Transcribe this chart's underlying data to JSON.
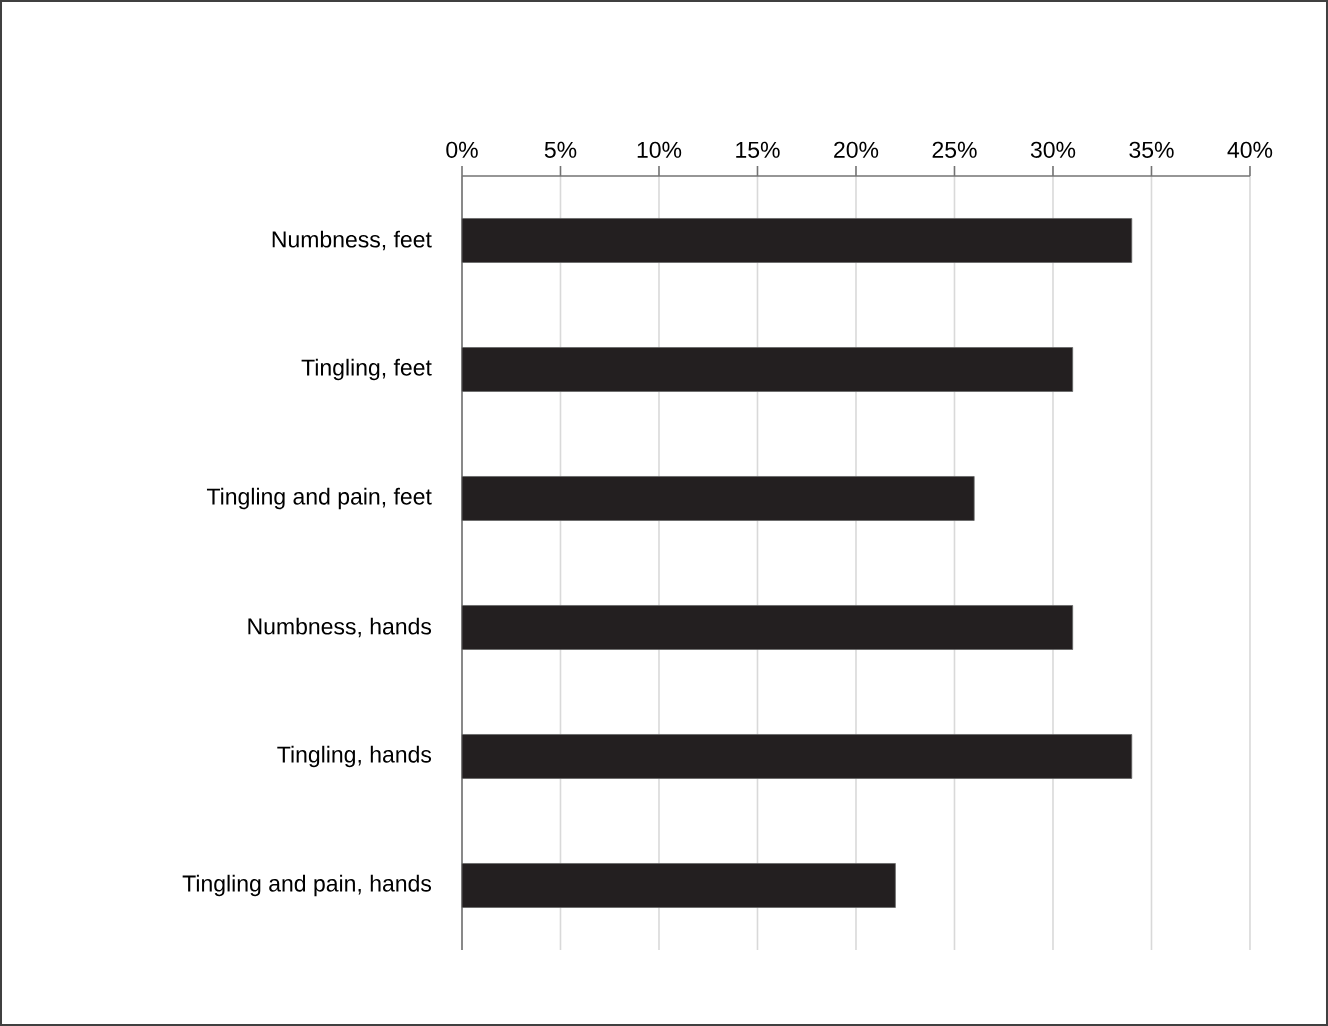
{
  "chart_data": {
    "type": "bar",
    "orientation": "horizontal",
    "categories": [
      "Numbness, feet",
      "Tingling, feet",
      "Tingling and pain, feet",
      "Numbness, hands",
      "Tingling, hands",
      "Tingling and pain, hands"
    ],
    "values": [
      34,
      31,
      26,
      31,
      34,
      22
    ],
    "color": "#231f20",
    "xlim": [
      0,
      40
    ],
    "xticks": [
      {
        "value": 0,
        "label": "0%"
      },
      {
        "value": 5,
        "label": "5%"
      },
      {
        "value": 10,
        "label": "10%"
      },
      {
        "value": 15,
        "label": "15%"
      },
      {
        "value": 20,
        "label": "20%"
      },
      {
        "value": 25,
        "label": "25%"
      },
      {
        "value": 30,
        "label": "30%"
      },
      {
        "value": 35,
        "label": "35%"
      },
      {
        "value": 40,
        "label": "40%"
      }
    ],
    "grid": "x"
  }
}
